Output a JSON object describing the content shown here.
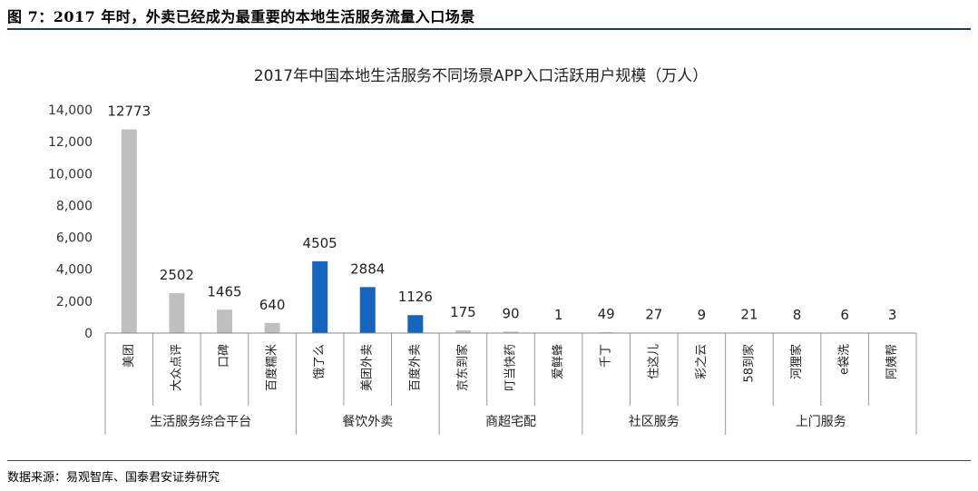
{
  "figure_title": "图 7：2017 年时，外卖已经成为最重要的本地生活服务流量入口场景",
  "source": "数据来源：易观智库、国泰君安证券研究",
  "chart_data": {
    "type": "bar",
    "title": "2017年中国本地生活服务不同场景APP入口活跃用户规模（万人）",
    "xlabel": "",
    "ylabel": "",
    "ylim": [
      0,
      14000
    ],
    "yticks": [
      0,
      2000,
      4000,
      6000,
      8000,
      10000,
      12000,
      14000
    ],
    "ytick_labels": [
      "0",
      "2,000",
      "4,000",
      "6,000",
      "8,000",
      "10,000",
      "12,000",
      "14,000"
    ],
    "grid": false,
    "legend": "none",
    "colors": {
      "gray": "#bfbfbf",
      "blue": "#1565c0"
    },
    "categories": [
      "美团",
      "大众点评",
      "口碑",
      "百度糯米",
      "饿了么",
      "美团外卖",
      "百度外卖",
      "京东到家",
      "叮当快药",
      "爱鲜蜂",
      "千丁",
      "住这儿",
      "彩之云",
      "58到家",
      "河狸家",
      "e袋洗",
      "阿姨帮"
    ],
    "values": [
      12773,
      2502,
      1465,
      640,
      4505,
      2884,
      1126,
      175,
      90,
      1,
      49,
      27,
      9,
      21,
      8,
      6,
      3
    ],
    "data_labels": [
      "12773",
      "2502",
      "1465",
      "640",
      "4505",
      "2884",
      "1126",
      "175",
      "90",
      "1",
      "49",
      "27",
      "9",
      "21",
      "8",
      "6",
      "3"
    ],
    "bar_colors": [
      "gray",
      "gray",
      "gray",
      "gray",
      "blue",
      "blue",
      "blue",
      "gray",
      "gray",
      "gray",
      "gray",
      "gray",
      "gray",
      "gray",
      "gray",
      "gray",
      "gray"
    ],
    "groups": [
      {
        "label": "生活服务综合平台",
        "count": 4
      },
      {
        "label": "餐饮外卖",
        "count": 3
      },
      {
        "label": "商超宅配",
        "count": 3
      },
      {
        "label": "社区服务",
        "count": 3
      },
      {
        "label": "上门服务",
        "count": 4
      }
    ]
  }
}
